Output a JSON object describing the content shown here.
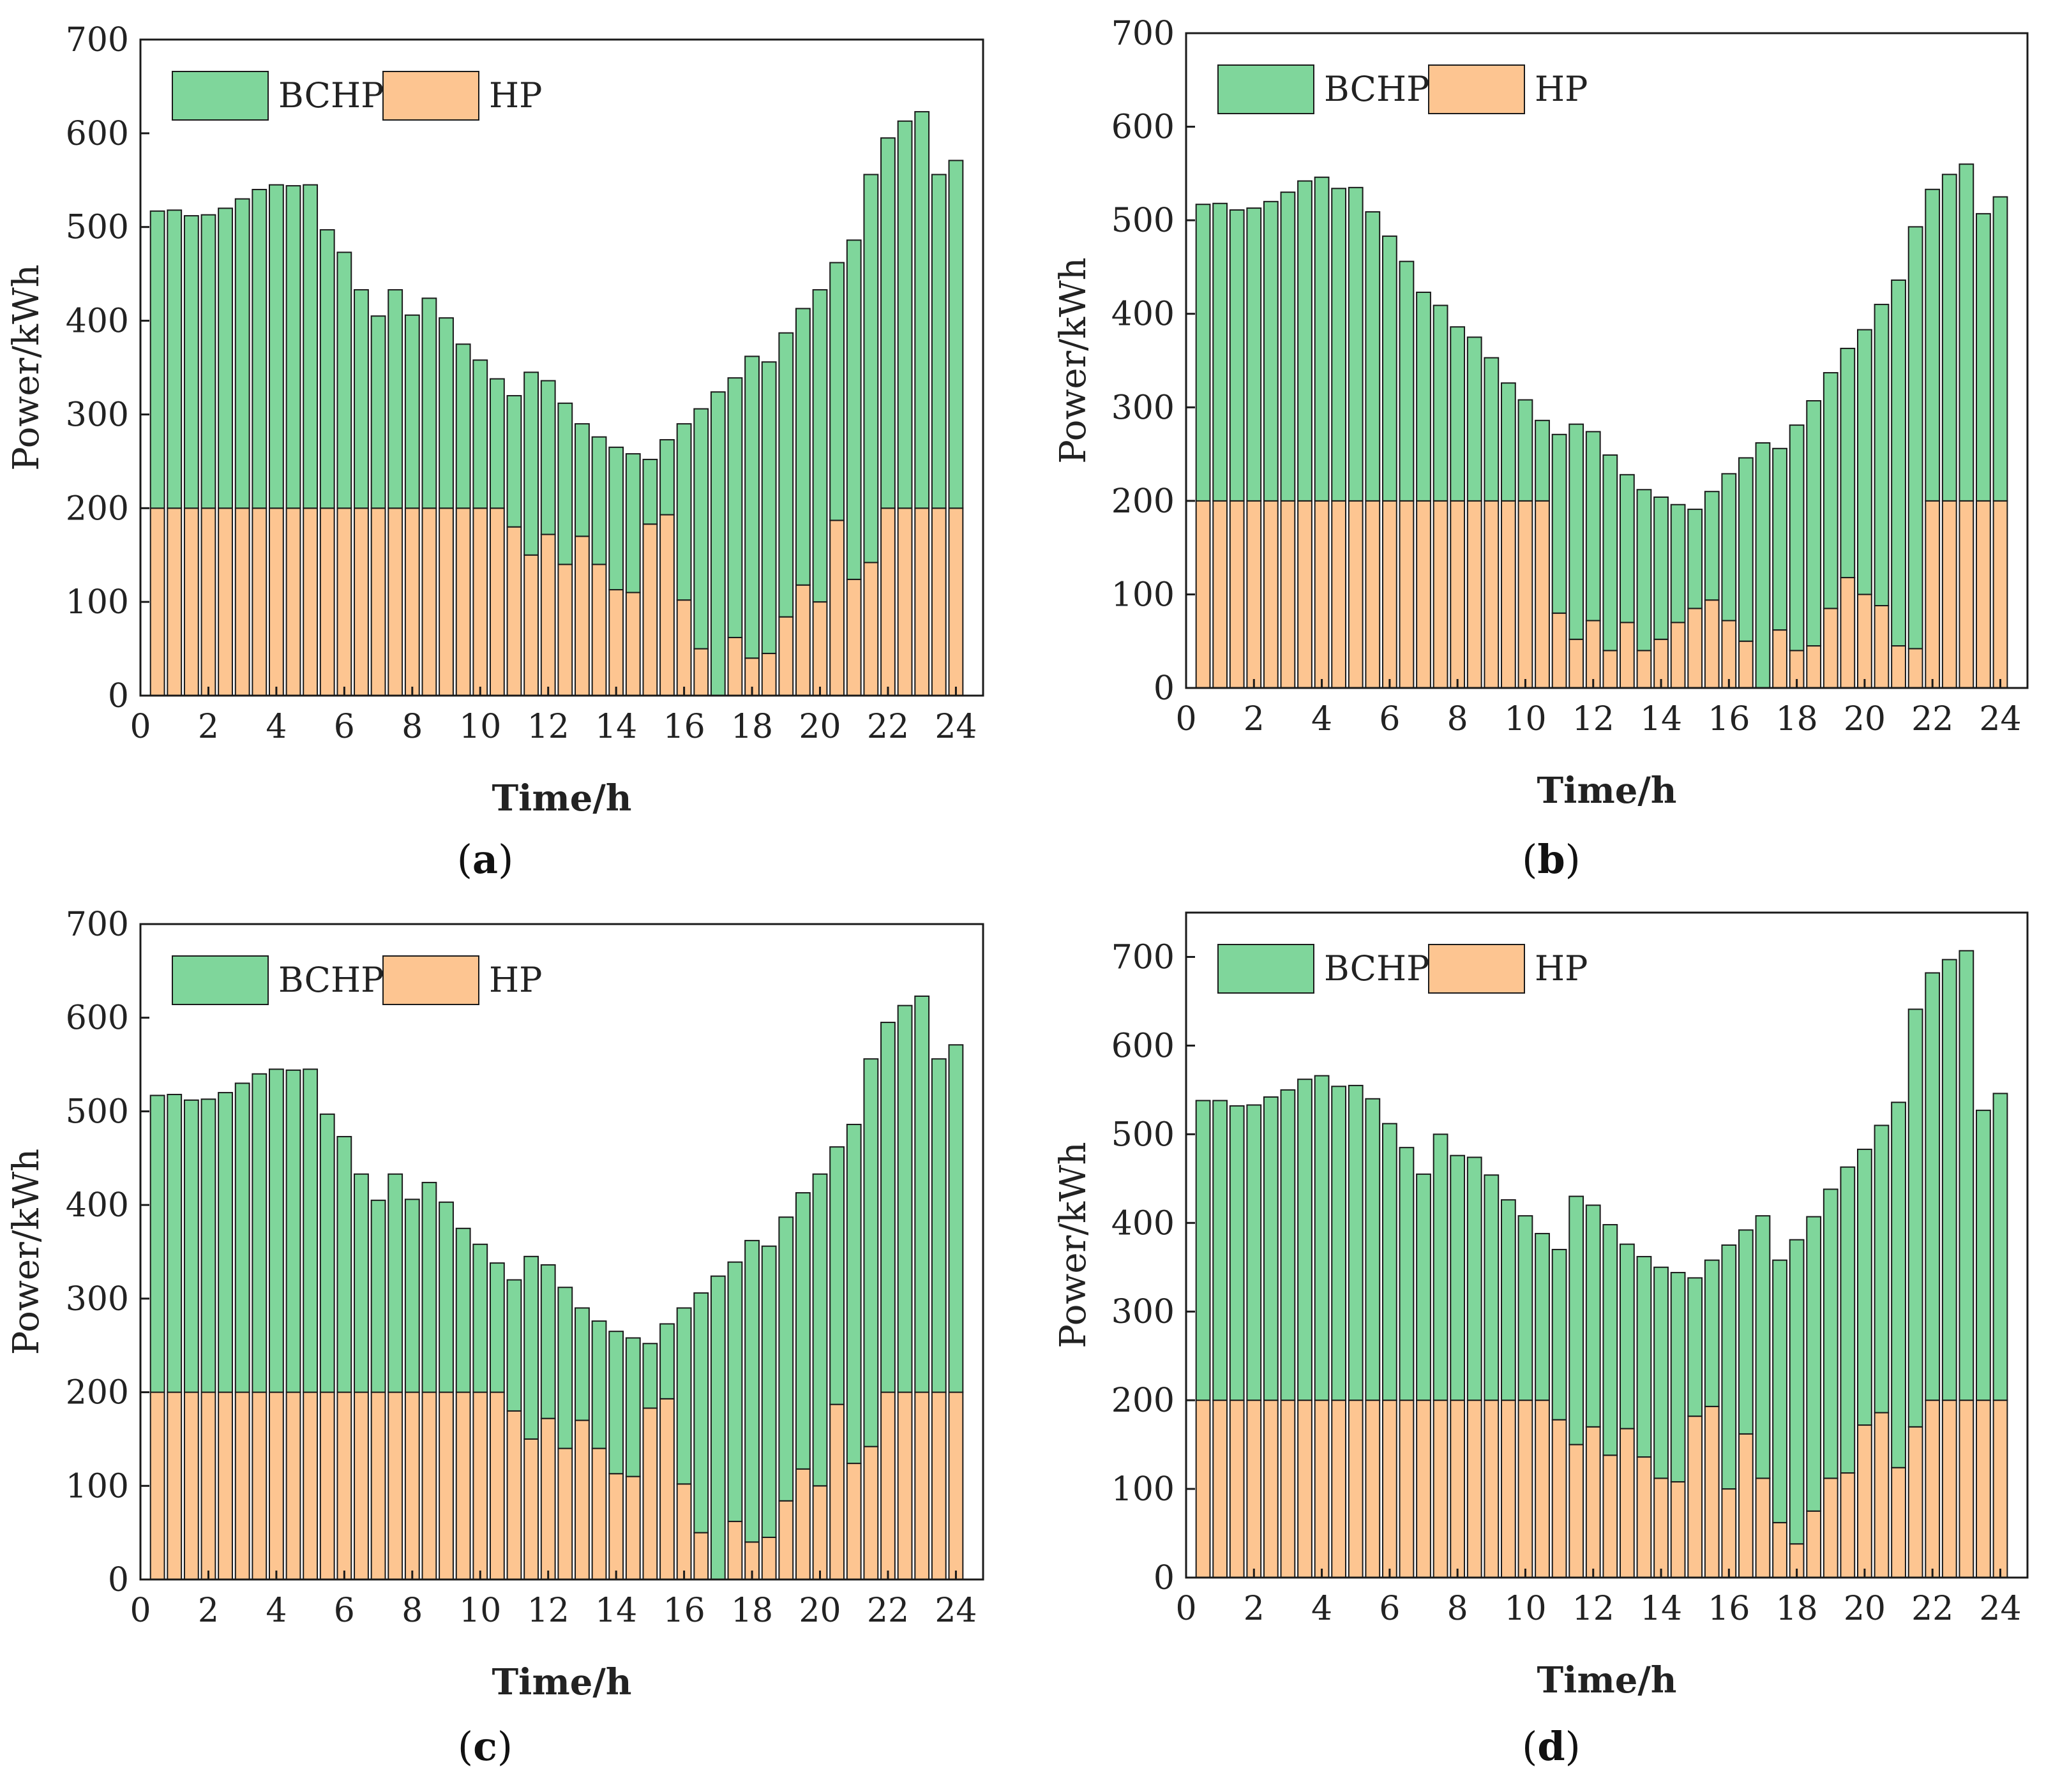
{
  "colors": {
    "bchp": "#7FD69B",
    "hp": "#FDC591",
    "stroke": "#1a1a1a"
  },
  "chart_data": [
    {
      "id": "a",
      "type": "bar",
      "stacked": true,
      "caption_letter": "a",
      "xlabel": "Time/h",
      "ylabel": "Power/kWh",
      "xlim": [
        0,
        24.8
      ],
      "ylim": [
        0,
        700
      ],
      "xticks": [
        "0",
        "2",
        "4",
        "6",
        "8",
        "10",
        "12",
        "14",
        "16",
        "18",
        "20",
        "22",
        "24"
      ],
      "yticks": [
        "0",
        "100",
        "200",
        "300",
        "400",
        "500",
        "600",
        "700"
      ],
      "legend": {
        "placement": "top-left",
        "entries": [
          "BCHP",
          "HP"
        ]
      },
      "x": [
        0.5,
        1,
        1.5,
        2,
        2.5,
        3,
        3.5,
        4,
        4.5,
        5,
        5.5,
        6,
        6.5,
        7,
        7.5,
        8,
        8.5,
        9,
        9.5,
        10,
        10.5,
        11,
        11.5,
        12,
        12.5,
        13,
        13.5,
        14,
        14.5,
        15,
        15.5,
        16,
        16.5,
        17,
        17.5,
        18,
        18.5,
        19,
        19.5,
        20,
        20.5,
        21,
        21.5,
        22,
        22.5,
        23,
        23.5,
        24
      ],
      "series": [
        {
          "name": "HP",
          "values": [
            200,
            200,
            200,
            200,
            200,
            200,
            200,
            200,
            200,
            200,
            200,
            200,
            200,
            200,
            200,
            200,
            200,
            200,
            200,
            200,
            200,
            180,
            150,
            172,
            140,
            170,
            140,
            113,
            110,
            183,
            193,
            102,
            50,
            0,
            62,
            40,
            45,
            84,
            118,
            100,
            187,
            124,
            142,
            200,
            200,
            200,
            200,
            200
          ]
        },
        {
          "name": "BCHP",
          "values": [
            317,
            318,
            312,
            313,
            320,
            330,
            340,
            345,
            344,
            345,
            297,
            273,
            233,
            205,
            233,
            206,
            224,
            203,
            175,
            158,
            138,
            140,
            195,
            164,
            172,
            120,
            136,
            152,
            148,
            69,
            80,
            188,
            256,
            324,
            277,
            322,
            311,
            303,
            295,
            333,
            275,
            362,
            414,
            395,
            413,
            423,
            356,
            371
          ]
        }
      ]
    },
    {
      "id": "b",
      "type": "bar",
      "stacked": true,
      "caption_letter": "b",
      "xlabel": "Time/h",
      "ylabel": "Power/kWh",
      "xlim": [
        0,
        24.8
      ],
      "ylim": [
        0,
        700
      ],
      "xticks": [
        "0",
        "2",
        "4",
        "6",
        "8",
        "10",
        "12",
        "14",
        "16",
        "18",
        "20",
        "22",
        "24"
      ],
      "yticks": [
        "0",
        "100",
        "200",
        "300",
        "400",
        "500",
        "600",
        "700"
      ],
      "legend": {
        "placement": "top-left",
        "entries": [
          "BCHP",
          "HP"
        ]
      },
      "x": [
        0.5,
        1,
        1.5,
        2,
        2.5,
        3,
        3.5,
        4,
        4.5,
        5,
        5.5,
        6,
        6.5,
        7,
        7.5,
        8,
        8.5,
        9,
        9.5,
        10,
        10.5,
        11,
        11.5,
        12,
        12.5,
        13,
        13.5,
        14,
        14.5,
        15,
        15.5,
        16,
        16.5,
        17,
        17.5,
        18,
        18.5,
        19,
        19.5,
        20,
        20.5,
        21,
        21.5,
        22,
        22.5,
        23,
        23.5,
        24
      ],
      "series": [
        {
          "name": "HP",
          "values": [
            200,
            200,
            200,
            200,
            200,
            200,
            200,
            200,
            200,
            200,
            200,
            200,
            200,
            200,
            200,
            200,
            200,
            200,
            200,
            200,
            200,
            80,
            52,
            72,
            40,
            70,
            40,
            52,
            70,
            85,
            94,
            72,
            50,
            0,
            62,
            40,
            45,
            85,
            118,
            100,
            88,
            45,
            42,
            200,
            200,
            200,
            200,
            200
          ]
        },
        {
          "name": "BCHP",
          "values": [
            317,
            318,
            311,
            313,
            320,
            330,
            342,
            346,
            334,
            335,
            309,
            283,
            256,
            223,
            209,
            186,
            175,
            153,
            126,
            108,
            86,
            191,
            230,
            202,
            209,
            158,
            172,
            152,
            126,
            106,
            116,
            157,
            196,
            262,
            194,
            241,
            262,
            252,
            245,
            283,
            322,
            391,
            451,
            333,
            349,
            360,
            307,
            325
          ]
        }
      ]
    },
    {
      "id": "c",
      "type": "bar",
      "stacked": true,
      "caption_letter": "c",
      "xlabel": "Time/h",
      "ylabel": "Power/kWh",
      "xlim": [
        0,
        24.8
      ],
      "ylim": [
        0,
        700
      ],
      "xticks": [
        "0",
        "2",
        "4",
        "6",
        "8",
        "10",
        "12",
        "14",
        "16",
        "18",
        "20",
        "22",
        "24"
      ],
      "yticks": [
        "0",
        "100",
        "200",
        "300",
        "400",
        "500",
        "600",
        "700"
      ],
      "legend": {
        "placement": "top-left",
        "entries": [
          "BCHP",
          "HP"
        ]
      },
      "x": [
        0.5,
        1,
        1.5,
        2,
        2.5,
        3,
        3.5,
        4,
        4.5,
        5,
        5.5,
        6,
        6.5,
        7,
        7.5,
        8,
        8.5,
        9,
        9.5,
        10,
        10.5,
        11,
        11.5,
        12,
        12.5,
        13,
        13.5,
        14,
        14.5,
        15,
        15.5,
        16,
        16.5,
        17,
        17.5,
        18,
        18.5,
        19,
        19.5,
        20,
        20.5,
        21,
        21.5,
        22,
        22.5,
        23,
        23.5,
        24
      ],
      "series": [
        {
          "name": "HP",
          "values": [
            200,
            200,
            200,
            200,
            200,
            200,
            200,
            200,
            200,
            200,
            200,
            200,
            200,
            200,
            200,
            200,
            200,
            200,
            200,
            200,
            200,
            180,
            150,
            172,
            140,
            170,
            140,
            113,
            110,
            183,
            193,
            102,
            50,
            0,
            62,
            40,
            45,
            84,
            118,
            100,
            187,
            124,
            142,
            200,
            200,
            200,
            200,
            200
          ]
        },
        {
          "name": "BCHP",
          "values": [
            317,
            318,
            312,
            313,
            320,
            330,
            340,
            345,
            344,
            345,
            297,
            273,
            233,
            205,
            233,
            206,
            224,
            203,
            175,
            158,
            138,
            140,
            195,
            164,
            172,
            120,
            136,
            152,
            148,
            69,
            80,
            188,
            256,
            324,
            277,
            322,
            311,
            303,
            295,
            333,
            275,
            362,
            414,
            395,
            413,
            423,
            356,
            371
          ]
        }
      ]
    },
    {
      "id": "d",
      "type": "bar",
      "stacked": true,
      "caption_letter": "d",
      "xlabel": "Time/h",
      "ylabel": "Power/kWh",
      "xlim": [
        0,
        24.8
      ],
      "ylim": [
        0,
        750
      ],
      "xticks": [
        "0",
        "2",
        "4",
        "6",
        "8",
        "10",
        "12",
        "14",
        "16",
        "18",
        "20",
        "22",
        "24"
      ],
      "yticks": [
        "0",
        "100",
        "200",
        "300",
        "400",
        "500",
        "600",
        "700"
      ],
      "legend": {
        "placement": "top-left",
        "entries": [
          "BCHP",
          "HP"
        ]
      },
      "x": [
        0.5,
        1,
        1.5,
        2,
        2.5,
        3,
        3.5,
        4,
        4.5,
        5,
        5.5,
        6,
        6.5,
        7,
        7.5,
        8,
        8.5,
        9,
        9.5,
        10,
        10.5,
        11,
        11.5,
        12,
        12.5,
        13,
        13.5,
        14,
        14.5,
        15,
        15.5,
        16,
        16.5,
        17,
        17.5,
        18,
        18.5,
        19,
        19.5,
        20,
        20.5,
        21,
        21.5,
        22,
        22.5,
        23,
        23.5,
        24
      ],
      "series": [
        {
          "name": "HP",
          "values": [
            200,
            200,
            200,
            200,
            200,
            200,
            200,
            200,
            200,
            200,
            200,
            200,
            200,
            200,
            200,
            200,
            200,
            200,
            200,
            200,
            200,
            178,
            150,
            170,
            138,
            168,
            136,
            112,
            108,
            182,
            193,
            100,
            162,
            112,
            62,
            38,
            75,
            112,
            118,
            172,
            186,
            124,
            170,
            200,
            200,
            200,
            200,
            200
          ]
        },
        {
          "name": "BCHP",
          "values": [
            338,
            338,
            332,
            333,
            342,
            350,
            362,
            366,
            354,
            355,
            340,
            312,
            285,
            255,
            300,
            276,
            274,
            254,
            226,
            208,
            188,
            192,
            280,
            250,
            260,
            208,
            226,
            238,
            236,
            156,
            165,
            275,
            230,
            296,
            296,
            343,
            332,
            326,
            345,
            311,
            324,
            412,
            471,
            482,
            497,
            507,
            327,
            346
          ]
        }
      ]
    }
  ]
}
